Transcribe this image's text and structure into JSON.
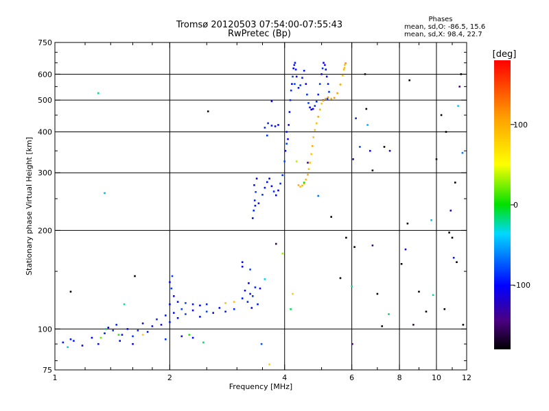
{
  "chart_data": {
    "type": "scatter",
    "title": "Tromsø 20120503 07:54:00-07:55:43",
    "subtitle": "RwPretec (Bp)",
    "xlabel": "Frequency [MHz]",
    "ylabel": "Stationary phase Virtual Height [km]",
    "x_scale": "log",
    "y_scale": "log",
    "xlim": [
      1,
      12
    ],
    "ylim": [
      75,
      750
    ],
    "x_ticks": [
      1,
      2,
      4,
      6,
      8,
      10,
      12
    ],
    "x_tick_labels": [
      "1",
      "2",
      "4",
      "6",
      "8",
      "10",
      "12"
    ],
    "y_ticks": [
      75,
      100,
      200,
      300,
      400,
      500,
      600,
      750
    ],
    "y_tick_labels": [
      "75",
      "100",
      "200",
      "300",
      "400",
      "500",
      "600",
      "750"
    ],
    "grid": true,
    "phases": {
      "heading": "Phases",
      "line_o": "mean, sd,O: -86.5, 15.6",
      "line_x": "mean, sd,X:  98.4, 22.7"
    },
    "colorbar": {
      "label": "[deg]",
      "min": -180,
      "max": 180,
      "ticks": [
        100,
        0,
        -100
      ],
      "tick_labels": [
        "100",
        "0",
        "-100"
      ],
      "colormap": "rainbow"
    },
    "series": [
      {
        "mode": "O",
        "phase": -95,
        "points": [
          [
            1.05,
            91
          ],
          [
            1.12,
            92
          ],
          [
            1.18,
            89
          ],
          [
            1.25,
            94
          ],
          [
            1.3,
            90
          ],
          [
            1.35,
            97
          ],
          [
            1.38,
            101
          ],
          [
            1.42,
            99
          ],
          [
            1.45,
            103
          ],
          [
            1.5,
            96
          ],
          [
            1.55,
            100
          ],
          [
            1.6,
            95
          ],
          [
            1.65,
            99
          ],
          [
            1.7,
            104
          ],
          [
            1.75,
            98
          ],
          [
            1.8,
            102
          ],
          [
            1.85,
            107
          ],
          [
            1.9,
            103
          ],
          [
            1.95,
            110
          ],
          [
            2.0,
            105
          ],
          [
            2.05,
            112
          ],
          [
            2.1,
            108
          ],
          [
            2.15,
            115
          ],
          [
            2.2,
            111
          ],
          [
            2.3,
            114
          ],
          [
            2.4,
            109
          ],
          [
            2.5,
            113
          ],
          [
            2.6,
            112
          ],
          [
            2.7,
            116
          ],
          [
            2.8,
            113
          ],
          [
            2.95,
            115
          ],
          [
            2.0,
            119
          ],
          [
            2.1,
            121
          ],
          [
            2.2,
            120
          ],
          [
            2.3,
            119
          ],
          [
            2.4,
            118
          ],
          [
            2.5,
            119
          ],
          [
            1.48,
            92
          ],
          [
            1.6,
            90
          ],
          [
            1.95,
            93
          ],
          [
            2.15,
            95
          ],
          [
            2.3,
            94
          ],
          [
            2.05,
            126
          ],
          [
            2.02,
            133
          ],
          [
            2.0,
            139
          ],
          [
            2.03,
            145
          ],
          [
            3.1,
            124
          ],
          [
            3.15,
            131
          ],
          [
            3.2,
            121
          ],
          [
            3.25,
            128
          ],
          [
            3.3,
            126
          ],
          [
            3.35,
            134
          ],
          [
            3.22,
            138
          ],
          [
            3.28,
            116
          ],
          [
            3.4,
            119
          ],
          [
            3.1,
            155
          ],
          [
            3.45,
            133
          ],
          [
            3.3,
            218
          ],
          [
            3.32,
            230
          ],
          [
            3.34,
            247
          ],
          [
            3.36,
            262
          ],
          [
            3.38,
            288
          ],
          [
            3.33,
            275
          ],
          [
            3.35,
            238
          ],
          [
            3.42,
            242
          ],
          [
            3.5,
            257
          ],
          [
            3.55,
            270
          ],
          [
            3.6,
            281
          ],
          [
            3.65,
            288
          ],
          [
            3.7,
            273
          ],
          [
            3.75,
            263
          ],
          [
            3.8,
            256
          ],
          [
            3.85,
            265
          ],
          [
            3.9,
            278
          ],
          [
            3.95,
            295
          ],
          [
            4.0,
            325
          ],
          [
            4.05,
            368
          ],
          [
            3.6,
            390
          ],
          [
            3.55,
            412
          ],
          [
            3.62,
            425
          ],
          [
            3.7,
            418
          ],
          [
            3.78,
            416
          ],
          [
            3.85,
            420
          ],
          [
            3.7,
            496
          ],
          [
            4.1,
            420
          ],
          [
            4.12,
            460
          ],
          [
            4.14,
            500
          ],
          [
            4.16,
            535
          ],
          [
            4.18,
            560
          ],
          [
            4.2,
            590
          ],
          [
            4.22,
            625
          ],
          [
            4.24,
            640
          ],
          [
            4.26,
            650
          ],
          [
            4.28,
            620
          ],
          [
            4.3,
            590
          ],
          [
            4.25,
            560
          ],
          [
            4.35,
            545
          ],
          [
            4.4,
            555
          ],
          [
            4.45,
            585
          ],
          [
            4.5,
            615
          ],
          [
            4.55,
            560
          ],
          [
            4.58,
            520
          ],
          [
            4.62,
            490
          ],
          [
            4.66,
            475
          ],
          [
            4.7,
            468
          ],
          [
            4.75,
            470
          ],
          [
            4.8,
            480
          ],
          [
            4.85,
            495
          ],
          [
            4.9,
            520
          ],
          [
            4.95,
            560
          ],
          [
            5.0,
            600
          ],
          [
            5.03,
            625
          ],
          [
            5.06,
            650
          ],
          [
            5.1,
            640
          ],
          [
            5.13,
            620
          ],
          [
            5.16,
            590
          ],
          [
            5.2,
            560
          ],
          [
            5.23,
            530
          ],
          [
            5.18,
            505
          ],
          [
            5.05,
            500
          ],
          [
            4.05,
            400
          ],
          [
            4.08,
            380
          ],
          [
            4.02,
            350
          ]
        ]
      },
      {
        "mode": "X",
        "phase": 100,
        "points": [
          [
            4.35,
            275
          ],
          [
            4.4,
            272
          ],
          [
            4.45,
            274
          ],
          [
            4.5,
            278
          ],
          [
            4.55,
            286
          ],
          [
            4.6,
            296
          ],
          [
            4.63,
            308
          ],
          [
            4.66,
            322
          ],
          [
            4.7,
            342
          ],
          [
            4.73,
            362
          ],
          [
            4.76,
            385
          ],
          [
            4.8,
            405
          ],
          [
            4.85,
            425
          ],
          [
            4.9,
            445
          ],
          [
            4.95,
            468
          ],
          [
            5.0,
            488
          ],
          [
            5.05,
            498
          ],
          [
            5.12,
            505
          ],
          [
            5.2,
            510
          ],
          [
            5.3,
            505
          ],
          [
            5.4,
            508
          ],
          [
            5.5,
            525
          ],
          [
            5.6,
            558
          ],
          [
            5.68,
            595
          ],
          [
            5.72,
            620
          ],
          [
            5.75,
            640
          ],
          [
            5.78,
            648
          ],
          [
            5.74,
            628
          ],
          [
            2.8,
            120
          ],
          [
            2.95,
            121
          ]
        ]
      },
      {
        "mode": "scatter",
        "phase": 0,
        "points": [
          [
            1.08,
            88
          ],
          [
            1.1,
            93
          ],
          [
            1.32,
            94
          ],
          [
            1.36,
            100
          ],
          [
            1.52,
            119
          ],
          [
            1.47,
            96
          ],
          [
            1.7,
            96
          ],
          [
            2.25,
            96
          ],
          [
            2.45,
            91
          ],
          [
            3.48,
            90
          ],
          [
            3.65,
            78
          ],
          [
            3.95,
            170
          ],
          [
            4.5,
            280
          ],
          [
            4.2,
            128
          ],
          [
            4.3,
            325
          ]
        ]
      },
      {
        "mode": "noise",
        "phase": -170,
        "points": [
          [
            1.1,
            130
          ],
          [
            1.3,
            525
          ],
          [
            1.35,
            260
          ],
          [
            1.62,
            145
          ],
          [
            2.52,
            462
          ],
          [
            3.1,
            160
          ],
          [
            3.25,
            152
          ],
          [
            3.55,
            142
          ],
          [
            3.8,
            182
          ],
          [
            4.15,
            115
          ],
          [
            4.6,
            322
          ],
          [
            4.9,
            255
          ],
          [
            5.3,
            220
          ],
          [
            5.6,
            143
          ],
          [
            6.0,
            135
          ],
          [
            6.02,
            90
          ],
          [
            6.05,
            330
          ],
          [
            6.1,
            178
          ],
          [
            6.15,
            440
          ],
          [
            6.3,
            360
          ],
          [
            6.5,
            600
          ],
          [
            6.55,
            470
          ],
          [
            6.6,
            420
          ],
          [
            6.7,
            350
          ],
          [
            6.8,
            305
          ],
          [
            7.0,
            128
          ],
          [
            7.2,
            102
          ],
          [
            7.5,
            111
          ],
          [
            7.55,
            350
          ],
          [
            8.1,
            158
          ],
          [
            8.3,
            175
          ],
          [
            8.4,
            210
          ],
          [
            8.5,
            575
          ],
          [
            8.7,
            103
          ],
          [
            9.0,
            130
          ],
          [
            9.4,
            113
          ],
          [
            9.8,
            127
          ],
          [
            10.0,
            330
          ],
          [
            10.3,
            450
          ],
          [
            10.6,
            400
          ],
          [
            10.8,
            197
          ],
          [
            10.9,
            230
          ],
          [
            11.0,
            190
          ],
          [
            11.1,
            165
          ],
          [
            11.3,
            160
          ],
          [
            11.4,
            480
          ],
          [
            11.5,
            550
          ],
          [
            11.6,
            600
          ],
          [
            11.7,
            345
          ],
          [
            11.75,
            103
          ],
          [
            11.2,
            280
          ],
          [
            10.5,
            115
          ],
          [
            9.7,
            215
          ],
          [
            6.8,
            180
          ],
          [
            7.3,
            360
          ],
          [
            5.8,
            190
          ]
        ]
      }
    ]
  }
}
